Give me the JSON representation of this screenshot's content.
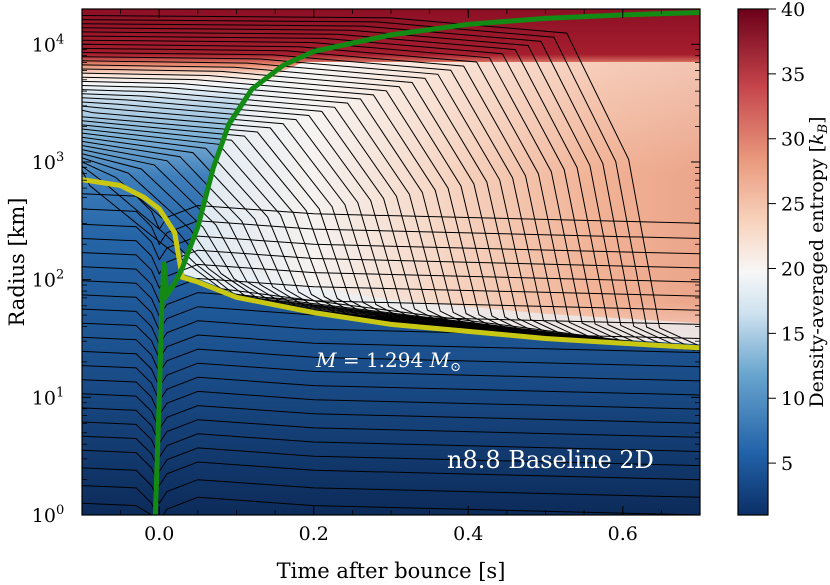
{
  "chart_data": {
    "type": "heatmap",
    "title": "",
    "xlabel": "Time after bounce [s]",
    "ylabel": "Radius [km]",
    "xlim": [
      -0.1,
      0.7
    ],
    "ylim_log10": [
      0,
      4.3
    ],
    "y_scale": "log",
    "x_ticks": [
      {
        "value": 0.0,
        "label": "0.0"
      },
      {
        "value": 0.2,
        "label": "0.2"
      },
      {
        "value": 0.4,
        "label": "0.4"
      },
      {
        "value": 0.6,
        "label": "0.6"
      }
    ],
    "y_ticks": [
      {
        "exp": 0,
        "base": "10",
        "sup": "0"
      },
      {
        "exp": 1,
        "base": "10",
        "sup": "1"
      },
      {
        "exp": 2,
        "base": "10",
        "sup": "2"
      },
      {
        "exp": 3,
        "base": "10",
        "sup": "3"
      },
      {
        "exp": 4,
        "base": "10",
        "sup": "4"
      }
    ],
    "colorbar": {
      "label": "Density-averaged entropy [k_B]",
      "label_text": "Density-averaged entropy [",
      "label_var": "k",
      "label_sub": "B",
      "label_close": "]",
      "range": [
        1,
        40
      ],
      "ticks": [
        "5",
        "10",
        "15",
        "20",
        "25",
        "30",
        "35",
        "40"
      ],
      "tick_values": [
        5,
        10,
        15,
        20,
        25,
        30,
        35,
        40
      ],
      "colormap": "RdBu_r"
    },
    "series": [
      {
        "name": "Shock radius",
        "color": "#138a13",
        "points": [
          [
            -0.005,
            0.0
          ],
          [
            0.0,
            1.0
          ],
          [
            0.003,
            1.7
          ],
          [
            0.006,
            2.15
          ],
          [
            0.01,
            1.87
          ],
          [
            0.02,
            1.97
          ],
          [
            0.03,
            2.1
          ],
          [
            0.05,
            2.45
          ],
          [
            0.07,
            2.95
          ],
          [
            0.09,
            3.32
          ],
          [
            0.12,
            3.62
          ],
          [
            0.16,
            3.82
          ],
          [
            0.2,
            3.94
          ],
          [
            0.3,
            4.08
          ],
          [
            0.4,
            4.17
          ],
          [
            0.5,
            4.22
          ],
          [
            0.6,
            4.25
          ],
          [
            0.7,
            4.27
          ]
        ]
      },
      {
        "name": "Mass shell M = 1.294 Msun",
        "color": "#c8c814",
        "points": [
          [
            -0.1,
            2.85
          ],
          [
            -0.05,
            2.8
          ],
          [
            -0.02,
            2.7
          ],
          [
            0.0,
            2.6
          ],
          [
            0.01,
            2.5
          ],
          [
            0.02,
            2.4
          ],
          [
            0.025,
            2.2
          ],
          [
            0.03,
            2.02
          ],
          [
            0.05,
            1.98
          ],
          [
            0.1,
            1.85
          ],
          [
            0.2,
            1.72
          ],
          [
            0.3,
            1.62
          ],
          [
            0.4,
            1.56
          ],
          [
            0.5,
            1.5
          ],
          [
            0.6,
            1.46
          ],
          [
            0.7,
            1.42
          ]
        ]
      }
    ],
    "annotations": {
      "mass_label_prefix": "M",
      "mass_label_mid": " = 1.294 ",
      "mass_label_M": "M",
      "mass_label_sub": "⊙",
      "panel_label": "n8.8 Baseline 2D"
    },
    "colors": {
      "shock": "#138a13",
      "mass_shell": "#c8c814",
      "mass_lines": "#000000"
    }
  }
}
